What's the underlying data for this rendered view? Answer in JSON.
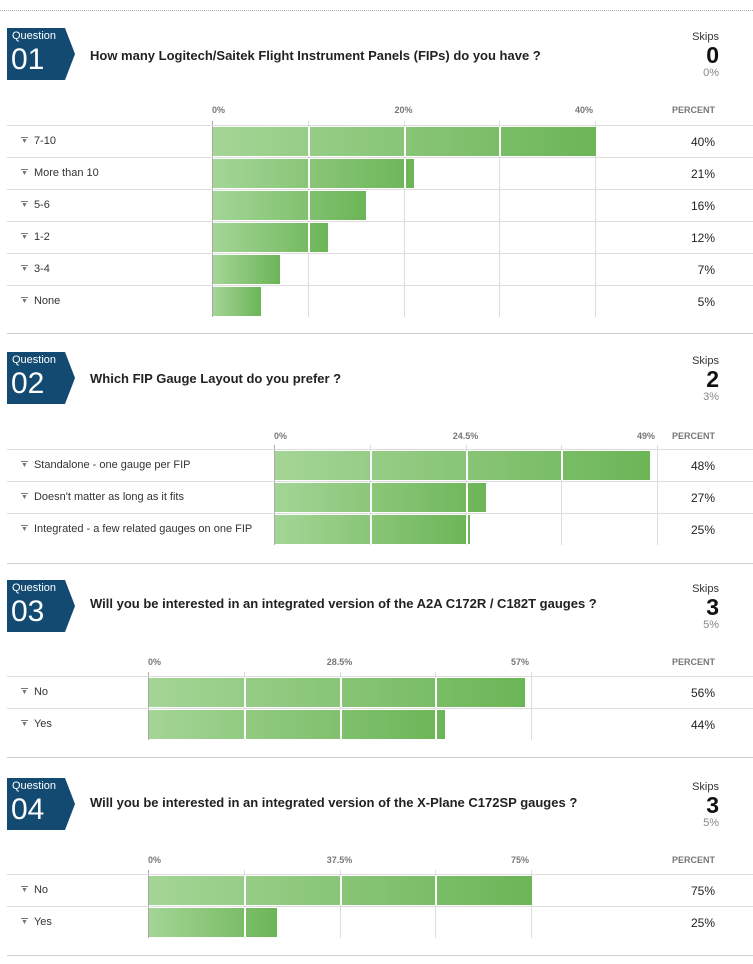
{
  "skips_label": "Skips",
  "percent_header": "PERCENT",
  "badge_label": "Question",
  "colors": {
    "badge": "#124a72",
    "bar_light": "#a4d596",
    "bar_dark": "#6cb557"
  },
  "chart_data": [
    {
      "type": "bar",
      "number": "01",
      "title": "How many Logitech/Saitek Flight Instrument Panels (FIPs) do you have ?",
      "skips": "0",
      "skips_pct": "0%",
      "ticks": [
        "0%",
        "20%",
        "40%"
      ],
      "xlim": [
        0,
        40
      ],
      "categories": [
        "7-10",
        "More than 10",
        "5-6",
        "1-2",
        "3-4",
        "None"
      ],
      "values": [
        40,
        21,
        16,
        12,
        7,
        5
      ],
      "labels": [
        "40%",
        "21%",
        "16%",
        "12%",
        "7%",
        "5%"
      ]
    },
    {
      "type": "bar",
      "number": "02",
      "title": "Which FIP Gauge Layout do you prefer ?",
      "skips": "2",
      "skips_pct": "3%",
      "ticks": [
        "0%",
        "24.5%",
        "49%"
      ],
      "xlim": [
        0,
        49
      ],
      "categories": [
        "Standalone - one gauge per FIP",
        "Doesn't matter as long as it fits",
        "Integrated - a few related gauges on one FIP"
      ],
      "values": [
        48,
        27,
        25
      ],
      "labels": [
        "48%",
        "27%",
        "25%"
      ]
    },
    {
      "type": "bar",
      "number": "03",
      "title": "Will you be interested in an integrated version of the A2A C172R / C182T gauges ?",
      "skips": "3",
      "skips_pct": "5%",
      "ticks": [
        "0%",
        "28.5%",
        "57%"
      ],
      "xlim": [
        0,
        57
      ],
      "categories": [
        "No",
        "Yes"
      ],
      "values": [
        56,
        44
      ],
      "labels": [
        "56%",
        "44%"
      ]
    },
    {
      "type": "bar",
      "number": "04",
      "title": "Will you be interested in an integrated version of the X-Plane C172SP gauges ?",
      "skips": "3",
      "skips_pct": "5%",
      "ticks": [
        "0%",
        "37.5%",
        "75%"
      ],
      "xlim": [
        0,
        75
      ],
      "categories": [
        "No",
        "Yes"
      ],
      "values": [
        75,
        25
      ],
      "labels": [
        "75%",
        "25%"
      ]
    }
  ]
}
